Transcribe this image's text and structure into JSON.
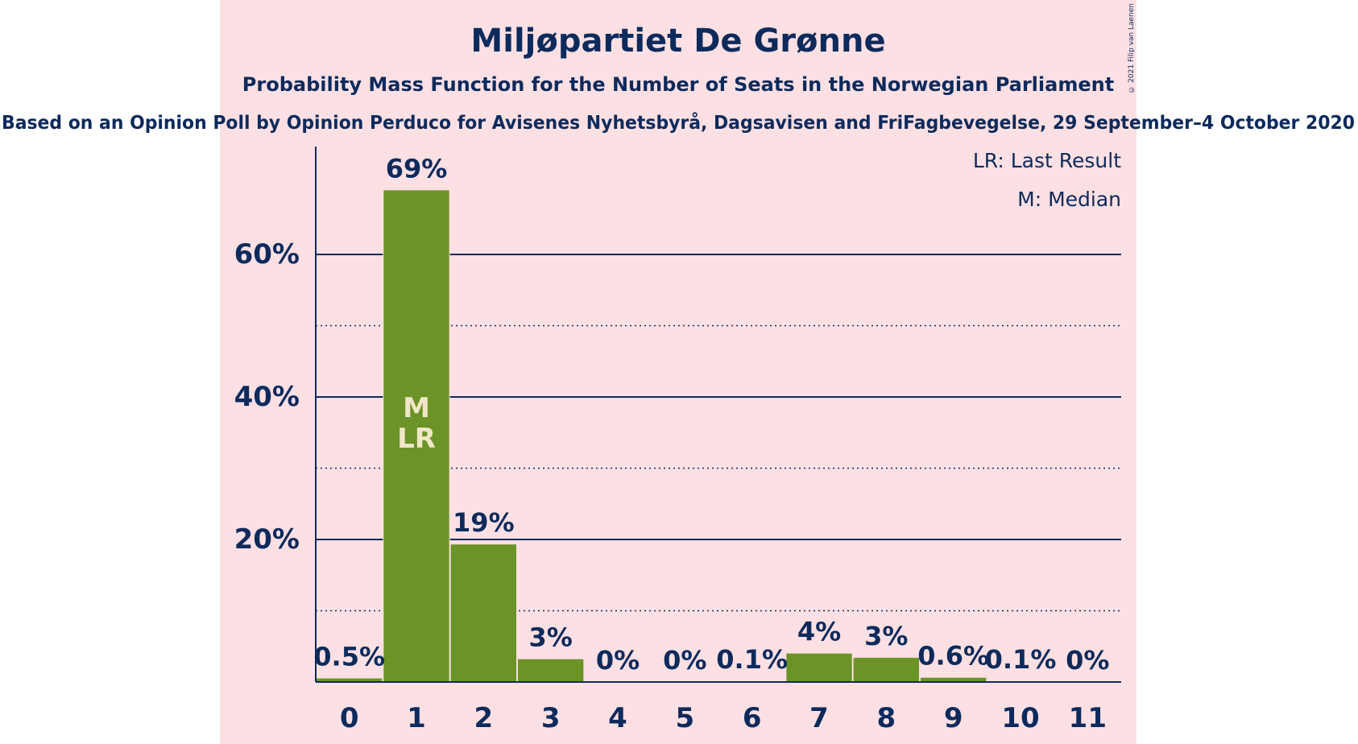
{
  "chart_data": {
    "type": "bar",
    "title": "Miljøpartiet De Grønne",
    "subtitle": "Probability Mass Function for the Number of Seats in the Norwegian Parliament",
    "source": "Based on an Opinion Poll by Opinion Perduco for Avisenes Nyhetsbyrå, Dagsavisen and FriFagbevegelse, 29 September–4 October 2020",
    "copyright": "© 2021 Filip van Laenen",
    "categories": [
      "0",
      "1",
      "2",
      "3",
      "4",
      "5",
      "6",
      "7",
      "8",
      "9",
      "10",
      "11"
    ],
    "values": [
      0.5,
      69,
      19.3,
      3.2,
      0,
      0,
      0.1,
      4,
      3.4,
      0.6,
      0.1,
      0
    ],
    "labels": [
      "0.5%",
      "69%",
      "19%",
      "3%",
      "0%",
      "0%",
      "0.1%",
      "4%",
      "3%",
      "0.6%",
      "0.1%",
      "0%"
    ],
    "ylim": [
      0,
      75
    ],
    "yticks": [
      20,
      40,
      60
    ],
    "ytick_labels": [
      "20%",
      "40%",
      "60%"
    ],
    "minor_gridlines": [
      10,
      30,
      50
    ],
    "bar_annotations": [
      {
        "category": "1",
        "lines": [
          "M",
          "LR"
        ]
      }
    ],
    "legend": {
      "position": "top-right",
      "lines": [
        "LR: Last Result",
        "M: Median"
      ]
    },
    "colors": {
      "bar": "#6b9328",
      "background_band": "#fde0e3",
      "text": "#0d2a5c",
      "annotation": "#f2e6c8"
    }
  }
}
